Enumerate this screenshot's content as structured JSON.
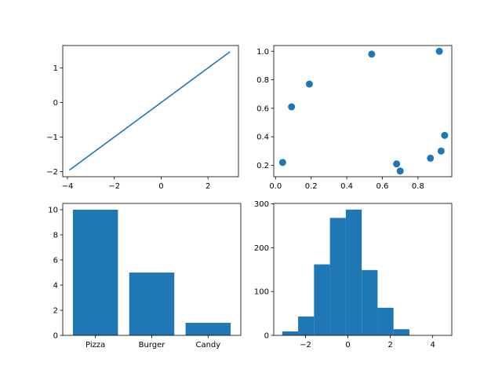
{
  "figure": {
    "background": "#ffffff",
    "series_color": "#1f77b4",
    "axes_color": "#000000"
  },
  "chart_data": [
    {
      "type": "line",
      "title": "",
      "xlabel": "",
      "ylabel": "",
      "xlim": [
        -4.2,
        3.3
      ],
      "ylim": [
        -2.15,
        1.65
      ],
      "grid": false,
      "x_ticks": [
        -4,
        -2,
        0,
        2
      ],
      "x_tick_labels": [
        "−4",
        "−2",
        "0",
        "2"
      ],
      "y_ticks": [
        -2,
        -1,
        0,
        1
      ],
      "y_tick_labels": [
        "−2",
        "−1",
        "0",
        "1"
      ],
      "series": [
        {
          "x": [
            -3.92,
            2.94
          ],
          "y": [
            -1.96,
            1.47
          ]
        }
      ]
    },
    {
      "type": "scatter",
      "title": "",
      "xlabel": "",
      "ylabel": "",
      "xlim": [
        -0.01,
        0.99
      ],
      "ylim": [
        0.12,
        1.04
      ],
      "grid": false,
      "x_ticks": [
        0.0,
        0.2,
        0.4,
        0.6,
        0.8
      ],
      "x_tick_labels": [
        "0.0",
        "0.2",
        "0.4",
        "0.6",
        "0.8"
      ],
      "y_ticks": [
        0.2,
        0.4,
        0.6,
        0.8,
        1.0
      ],
      "y_tick_labels": [
        "0.2",
        "0.4",
        "0.6",
        "0.8",
        "1.0"
      ],
      "series": [
        {
          "x": [
            0.04,
            0.09,
            0.19,
            0.54,
            0.68,
            0.7,
            0.87,
            0.92,
            0.93,
            0.95
          ],
          "y": [
            0.22,
            0.61,
            0.77,
            0.98,
            0.21,
            0.16,
            0.25,
            1.0,
            0.3,
            0.41
          ]
        }
      ]
    },
    {
      "type": "bar",
      "title": "",
      "xlabel": "",
      "ylabel": "",
      "categories": [
        "Pizza",
        "Burger",
        "Candy"
      ],
      "values": [
        10,
        5,
        1
      ],
      "ylim": [
        0,
        10.5
      ],
      "grid": false,
      "y_ticks": [
        0,
        2,
        4,
        6,
        8,
        10
      ],
      "y_tick_labels": [
        "0",
        "2",
        "4",
        "6",
        "8",
        "10"
      ]
    },
    {
      "type": "bar",
      "title": "",
      "xlabel": "",
      "ylabel": "",
      "histogram": true,
      "bin_edges": [
        -3.1,
        -2.35,
        -1.6,
        -0.85,
        -0.1,
        0.65,
        1.4,
        2.15,
        2.9,
        3.65,
        4.4
      ],
      "values": [
        9,
        43,
        162,
        268,
        287,
        149,
        63,
        14,
        0,
        0
      ],
      "xlim": [
        -3.5,
        4.9
      ],
      "ylim": [
        0,
        301
      ],
      "grid": false,
      "x_ticks": [
        -2,
        0,
        2,
        4
      ],
      "x_tick_labels": [
        "−2",
        "0",
        "2",
        "4"
      ],
      "y_ticks": [
        0,
        100,
        200,
        300
      ],
      "y_tick_labels": [
        "0",
        "100",
        "200",
        "300"
      ]
    }
  ]
}
